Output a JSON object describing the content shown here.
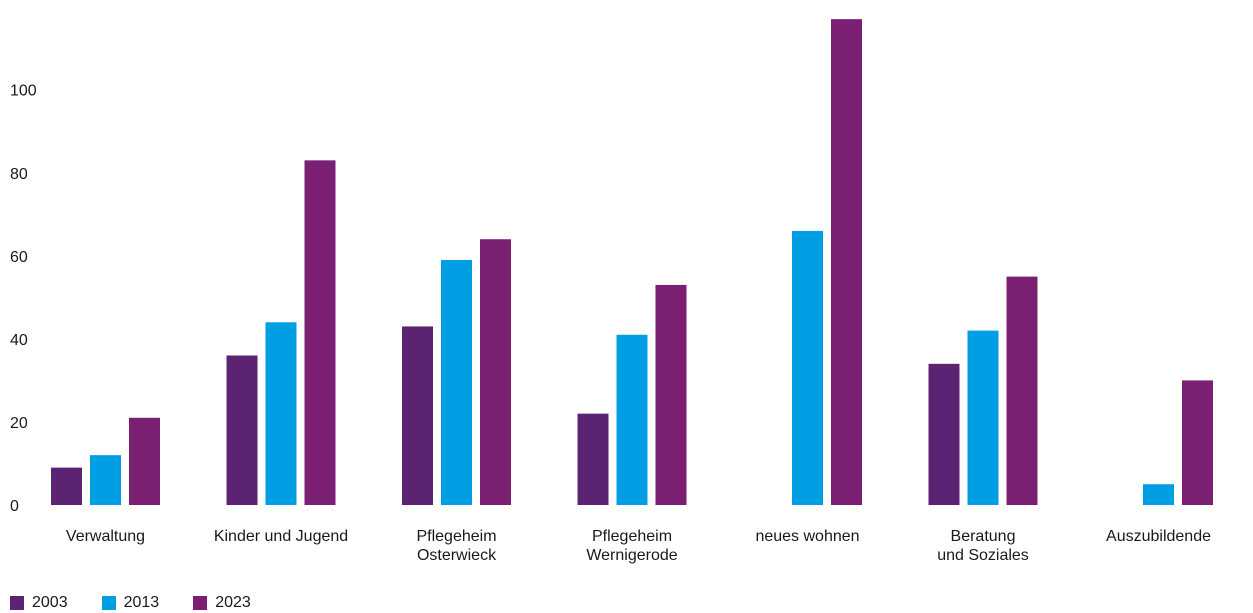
{
  "chart_data": {
    "type": "bar",
    "title": "",
    "xlabel": "",
    "ylabel": "",
    "ylim": [
      0,
      118
    ],
    "yticks": [
      0,
      20,
      40,
      60,
      80,
      100
    ],
    "grid": false,
    "legend_position": "bottom-left",
    "categories": [
      [
        "Verwaltung"
      ],
      [
        "Kinder und Jugend"
      ],
      [
        "Pflegeheim",
        "Osterwieck"
      ],
      [
        "Pflegeheim",
        "Wernigerode"
      ],
      [
        "neues wohnen"
      ],
      [
        "Beratung",
        "und Soziales"
      ],
      [
        "Auszubildende"
      ]
    ],
    "series": [
      {
        "name": "2003",
        "color": "#5b2372",
        "values": [
          9,
          36,
          43,
          22,
          0,
          34,
          0
        ]
      },
      {
        "name": "2013",
        "color": "#009ee3",
        "values": [
          12,
          44,
          59,
          41,
          66,
          42,
          5
        ]
      },
      {
        "name": "2023",
        "color": "#7b1f72",
        "values": [
          21,
          83,
          64,
          53,
          117,
          55,
          30
        ]
      }
    ]
  }
}
